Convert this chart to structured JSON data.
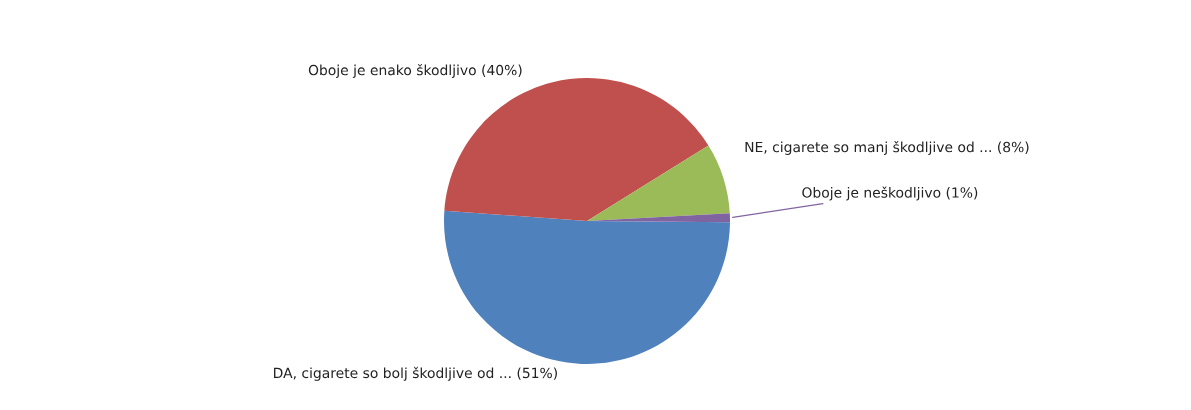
{
  "chart_data": {
    "type": "pie",
    "categories": [
      "DA, cigarete so bolj škodljive od ...",
      "Oboje je enako škodljivo",
      "NE, cigarete so manj škodljive od ...",
      "Oboje je neškodljivo"
    ],
    "values": [
      51,
      40,
      8,
      1
    ],
    "value_labels": [
      "(51%)",
      "(40%)",
      "(8%)",
      "(1%)"
    ],
    "colors": [
      "#4f81bd",
      "#c0504d",
      "#9bbb59",
      "#8064a2"
    ],
    "legend": false
  }
}
